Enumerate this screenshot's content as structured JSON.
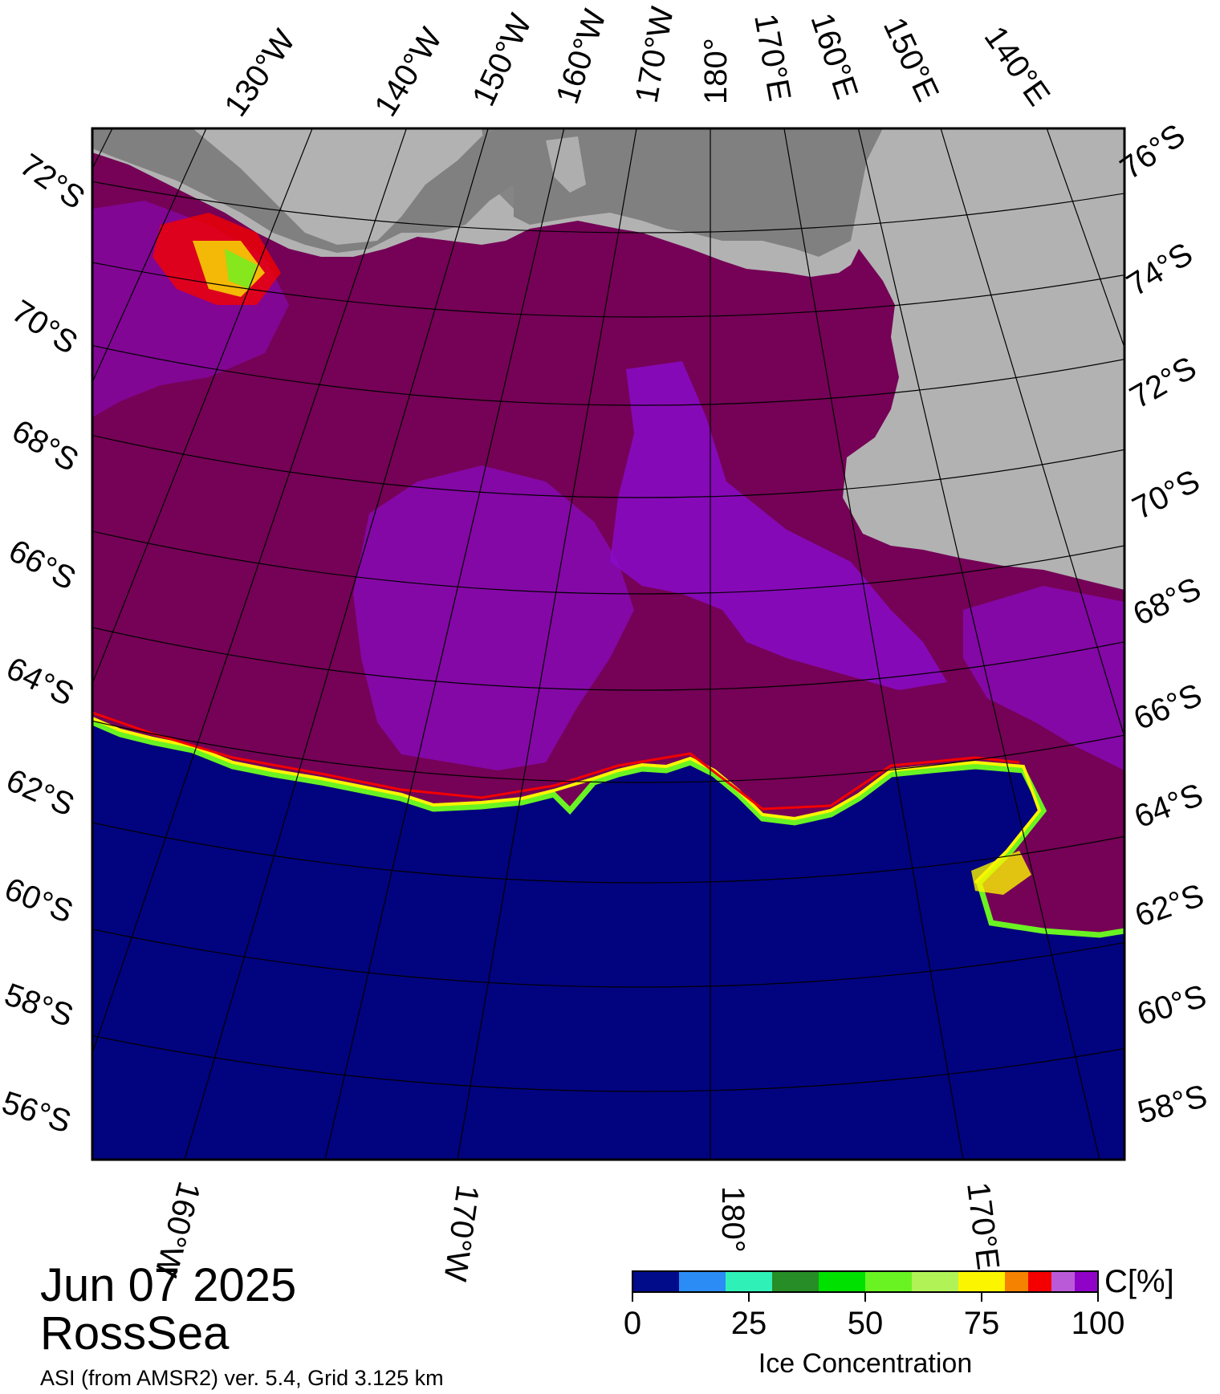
{
  "map": {
    "date": "Jun 07 2025",
    "region": "RossSea",
    "source": "ASI (from AMSR2) ver. 5.4,  Grid 3.125 km",
    "colors": {
      "open_water": "#02037f",
      "ice_high": "#750256",
      "ice_mid": "#8a0bc8",
      "land_ice": "#b2b2b2",
      "land_dark": "#808080"
    },
    "top_lon_labels": [
      "130°W",
      "140°W",
      "150°W",
      "160°W",
      "170°W",
      "180°",
      "170°E",
      "160°E",
      "150°E",
      "140°E"
    ],
    "bottom_lon_labels": [
      "160°W",
      "170°W",
      "180°",
      "170°E"
    ],
    "left_lat_labels": [
      "72°S",
      "70°S",
      "68°S",
      "66°S",
      "64°S",
      "62°S",
      "60°S",
      "58°S",
      "56°S"
    ],
    "right_lat_labels": [
      "76°S",
      "74°S",
      "72°S",
      "70°S",
      "68°S",
      "66°S",
      "64°S",
      "62°S",
      "60°S",
      "58°S"
    ]
  },
  "legend": {
    "title": "Ice Concentration",
    "unit": "C[%]",
    "ticks": [
      "0",
      "25",
      "50",
      "75",
      "100"
    ],
    "colors": [
      "#000c8a",
      "#2b8cf5",
      "#2ff1b8",
      "#268d27",
      "#00e100",
      "#6af322",
      "#b1f257",
      "#fbf500",
      "#f58200",
      "#f40000",
      "#bb5ad8",
      "#9102c8"
    ]
  }
}
